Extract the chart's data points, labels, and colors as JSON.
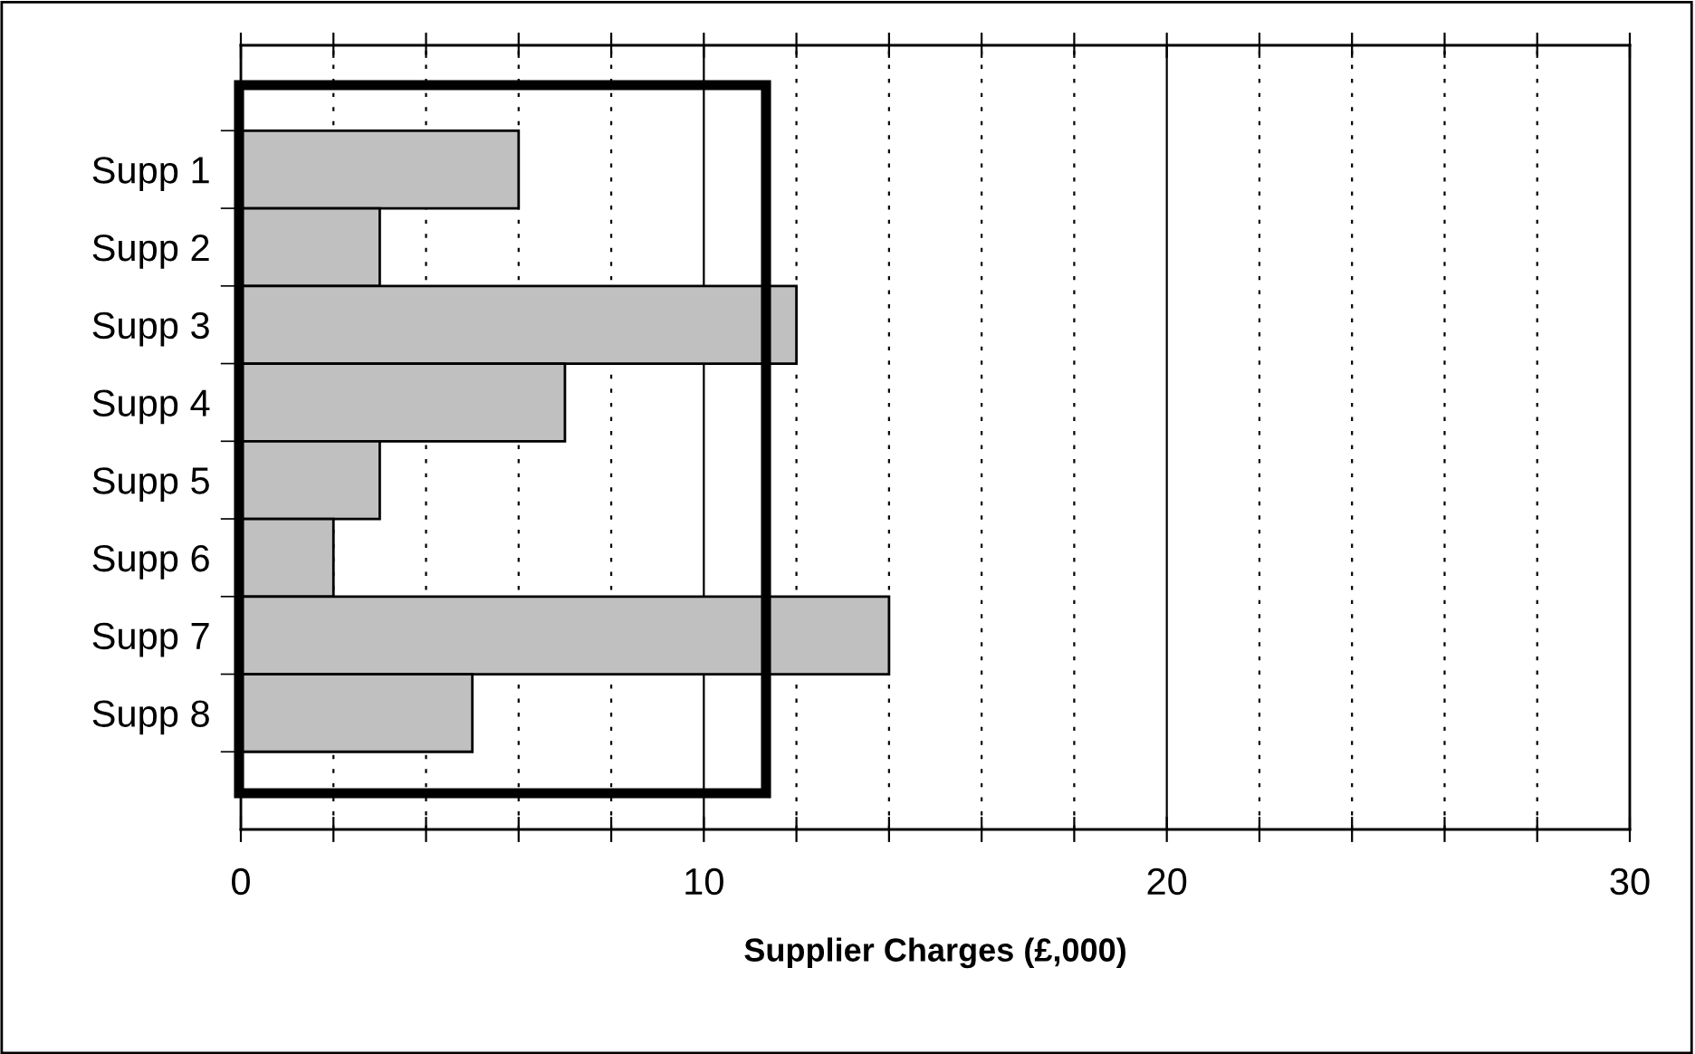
{
  "chart_data": {
    "type": "bar",
    "orientation": "horizontal",
    "xlabel": "Supplier Charges (£,000)",
    "categories": [
      "Supp 1",
      "Supp 2",
      "Supp 3",
      "Supp 4",
      "Supp 5",
      "Supp 6",
      "Supp 7",
      "Supp 8"
    ],
    "values": [
      6,
      3,
      12,
      7,
      3,
      2,
      14,
      5
    ],
    "color": "#c0c0c0",
    "xlim": [
      0,
      30
    ],
    "xticks": [
      0,
      {
        "value": 2,
        "label": null
      },
      {
        "value": 4,
        "label": null
      },
      {
        "value": 6,
        "label": null
      },
      {
        "value": 8,
        "label": null
      },
      10,
      {
        "value": 12,
        "label": null
      },
      {
        "value": 14,
        "label": null
      },
      {
        "value": 16,
        "label": null
      },
      {
        "value": 18,
        "label": null
      },
      20,
      {
        "value": 22,
        "label": null
      },
      {
        "value": 24,
        "label": null
      },
      {
        "value": 26,
        "label": null
      },
      {
        "value": 28,
        "label": null
      },
      30
    ],
    "grid": "x",
    "legend": false
  }
}
